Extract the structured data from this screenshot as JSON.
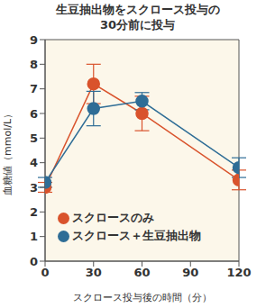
{
  "chart_data": {
    "type": "line",
    "title": "生豆抽出物をスクロース投与の\n30分前に投与",
    "x_label": "スクロース投与後の時間（分）",
    "y_label": "血糖値（mmol/L）",
    "x": [
      0,
      30,
      60,
      120
    ],
    "xlim": [
      0,
      120
    ],
    "xticks": [
      0,
      30,
      60,
      90,
      120
    ],
    "ylim": [
      0,
      9
    ],
    "yticks": [
      0,
      1,
      2,
      3,
      4,
      5,
      6,
      7,
      8,
      9
    ],
    "grid": false,
    "legend": "lower left",
    "series": [
      {
        "name": "スクロースのみ",
        "color": "#d9532c",
        "marker": "circle",
        "values": [
          3.0,
          7.2,
          6.0,
          3.3
        ],
        "errors": [
          0.2,
          0.8,
          0.7,
          0.4
        ]
      },
      {
        "name": "スクロース＋生豆抽出物",
        "color": "#2f6d96",
        "marker": "circle",
        "values": [
          3.2,
          6.2,
          6.5,
          3.8
        ],
        "errors": [
          0.2,
          0.7,
          0.35,
          0.4
        ]
      }
    ]
  }
}
